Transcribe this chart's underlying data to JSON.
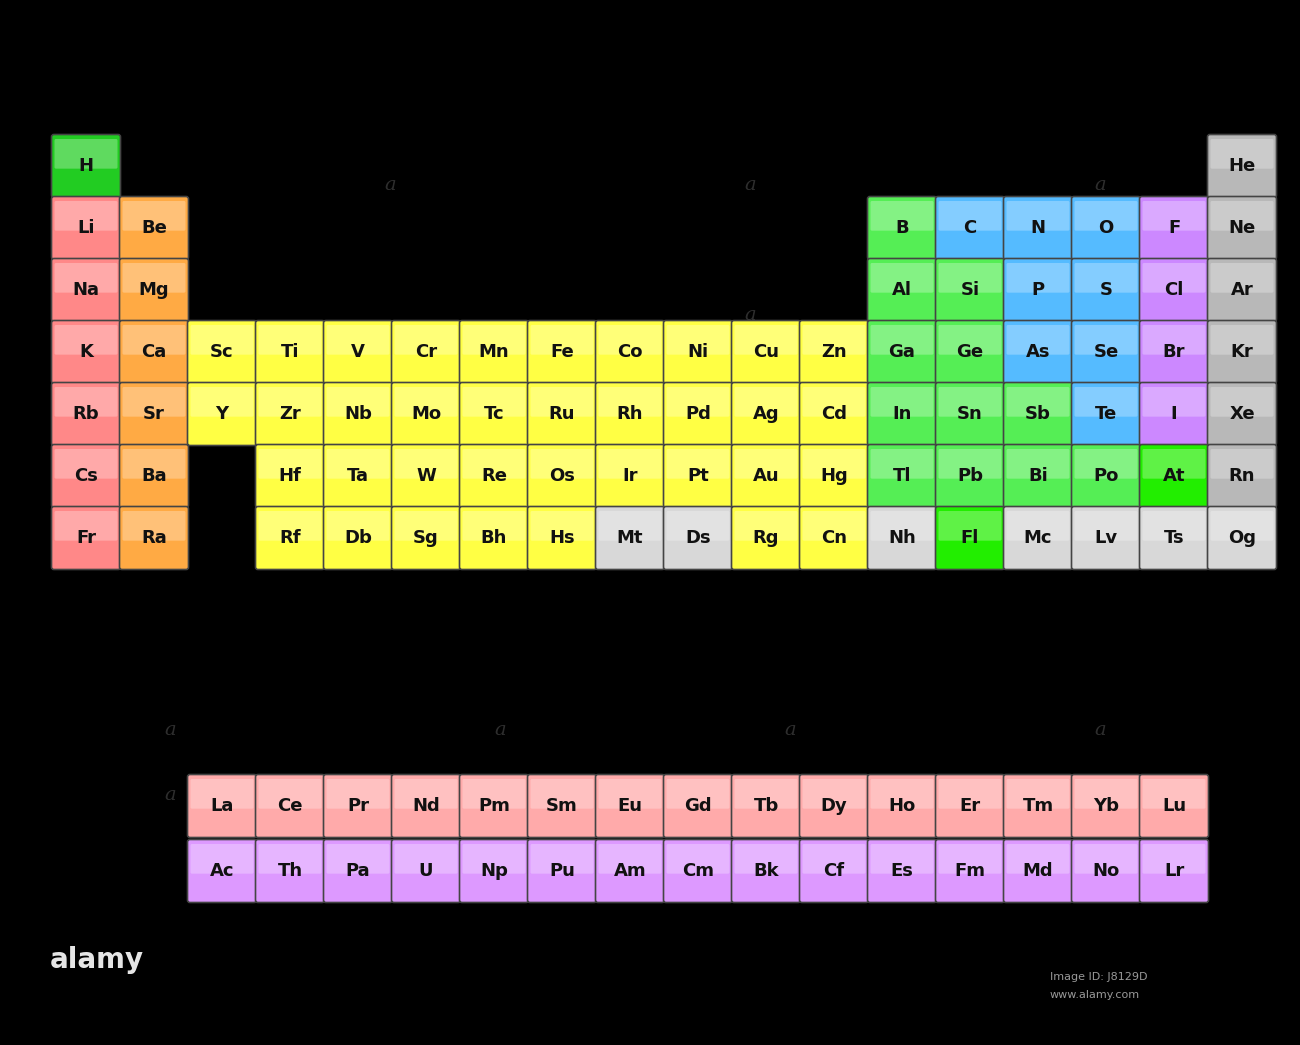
{
  "background_color": "#000000",
  "elements": [
    {
      "symbol": "H",
      "group": 1,
      "period": 1,
      "color": "#22cc22"
    },
    {
      "symbol": "He",
      "group": 18,
      "period": 1,
      "color": "#b8b8b8"
    },
    {
      "symbol": "Li",
      "group": 1,
      "period": 2,
      "color": "#ff8888"
    },
    {
      "symbol": "Be",
      "group": 2,
      "period": 2,
      "color": "#ffaa44"
    },
    {
      "symbol": "B",
      "group": 13,
      "period": 2,
      "color": "#55ee55"
    },
    {
      "symbol": "C",
      "group": 14,
      "period": 2,
      "color": "#55bbff"
    },
    {
      "symbol": "N",
      "group": 15,
      "period": 2,
      "color": "#55bbff"
    },
    {
      "symbol": "O",
      "group": 16,
      "period": 2,
      "color": "#55bbff"
    },
    {
      "symbol": "F",
      "group": 17,
      "period": 2,
      "color": "#cc88ff"
    },
    {
      "symbol": "Ne",
      "group": 18,
      "period": 2,
      "color": "#b8b8b8"
    },
    {
      "symbol": "Na",
      "group": 1,
      "period": 3,
      "color": "#ff8888"
    },
    {
      "symbol": "Mg",
      "group": 2,
      "period": 3,
      "color": "#ffaa44"
    },
    {
      "symbol": "Al",
      "group": 13,
      "period": 3,
      "color": "#55ee55"
    },
    {
      "symbol": "Si",
      "group": 14,
      "period": 3,
      "color": "#55ee55"
    },
    {
      "symbol": "P",
      "group": 15,
      "period": 3,
      "color": "#55bbff"
    },
    {
      "symbol": "S",
      "group": 16,
      "period": 3,
      "color": "#55bbff"
    },
    {
      "symbol": "Cl",
      "group": 17,
      "period": 3,
      "color": "#cc88ff"
    },
    {
      "symbol": "Ar",
      "group": 18,
      "period": 3,
      "color": "#b8b8b8"
    },
    {
      "symbol": "K",
      "group": 1,
      "period": 4,
      "color": "#ff8888"
    },
    {
      "symbol": "Ca",
      "group": 2,
      "period": 4,
      "color": "#ffaa44"
    },
    {
      "symbol": "Sc",
      "group": 3,
      "period": 4,
      "color": "#ffff44"
    },
    {
      "symbol": "Ti",
      "group": 4,
      "period": 4,
      "color": "#ffff44"
    },
    {
      "symbol": "V",
      "group": 5,
      "period": 4,
      "color": "#ffff44"
    },
    {
      "symbol": "Cr",
      "group": 6,
      "period": 4,
      "color": "#ffff44"
    },
    {
      "symbol": "Mn",
      "group": 7,
      "period": 4,
      "color": "#ffff44"
    },
    {
      "symbol": "Fe",
      "group": 8,
      "period": 4,
      "color": "#ffff44"
    },
    {
      "symbol": "Co",
      "group": 9,
      "period": 4,
      "color": "#ffff44"
    },
    {
      "symbol": "Ni",
      "group": 10,
      "period": 4,
      "color": "#ffff44"
    },
    {
      "symbol": "Cu",
      "group": 11,
      "period": 4,
      "color": "#ffff44"
    },
    {
      "symbol": "Zn",
      "group": 12,
      "period": 4,
      "color": "#ffff44"
    },
    {
      "symbol": "Ga",
      "group": 13,
      "period": 4,
      "color": "#55ee55"
    },
    {
      "symbol": "Ge",
      "group": 14,
      "period": 4,
      "color": "#55ee55"
    },
    {
      "symbol": "As",
      "group": 15,
      "period": 4,
      "color": "#55bbff"
    },
    {
      "symbol": "Se",
      "group": 16,
      "period": 4,
      "color": "#55bbff"
    },
    {
      "symbol": "Br",
      "group": 17,
      "period": 4,
      "color": "#cc88ff"
    },
    {
      "symbol": "Kr",
      "group": 18,
      "period": 4,
      "color": "#b8b8b8"
    },
    {
      "symbol": "Rb",
      "group": 1,
      "period": 5,
      "color": "#ff8888"
    },
    {
      "symbol": "Sr",
      "group": 2,
      "period": 5,
      "color": "#ffaa44"
    },
    {
      "symbol": "Y",
      "group": 3,
      "period": 5,
      "color": "#ffff44"
    },
    {
      "symbol": "Zr",
      "group": 4,
      "period": 5,
      "color": "#ffff44"
    },
    {
      "symbol": "Nb",
      "group": 5,
      "period": 5,
      "color": "#ffff44"
    },
    {
      "symbol": "Mo",
      "group": 6,
      "period": 5,
      "color": "#ffff44"
    },
    {
      "symbol": "Tc",
      "group": 7,
      "period": 5,
      "color": "#ffff44"
    },
    {
      "symbol": "Ru",
      "group": 8,
      "period": 5,
      "color": "#ffff44"
    },
    {
      "symbol": "Rh",
      "group": 9,
      "period": 5,
      "color": "#ffff44"
    },
    {
      "symbol": "Pd",
      "group": 10,
      "period": 5,
      "color": "#ffff44"
    },
    {
      "symbol": "Ag",
      "group": 11,
      "period": 5,
      "color": "#ffff44"
    },
    {
      "symbol": "Cd",
      "group": 12,
      "period": 5,
      "color": "#ffff44"
    },
    {
      "symbol": "In",
      "group": 13,
      "period": 5,
      "color": "#55ee55"
    },
    {
      "symbol": "Sn",
      "group": 14,
      "period": 5,
      "color": "#55ee55"
    },
    {
      "symbol": "Sb",
      "group": 15,
      "period": 5,
      "color": "#55ee55"
    },
    {
      "symbol": "Te",
      "group": 16,
      "period": 5,
      "color": "#55bbff"
    },
    {
      "symbol": "I",
      "group": 17,
      "period": 5,
      "color": "#cc88ff"
    },
    {
      "symbol": "Xe",
      "group": 18,
      "period": 5,
      "color": "#b8b8b8"
    },
    {
      "symbol": "Cs",
      "group": 1,
      "period": 6,
      "color": "#ff8888"
    },
    {
      "symbol": "Ba",
      "group": 2,
      "period": 6,
      "color": "#ffaa44"
    },
    {
      "symbol": "Hf",
      "group": 4,
      "period": 6,
      "color": "#ffff44"
    },
    {
      "symbol": "Ta",
      "group": 5,
      "period": 6,
      "color": "#ffff44"
    },
    {
      "symbol": "W",
      "group": 6,
      "period": 6,
      "color": "#ffff44"
    },
    {
      "symbol": "Re",
      "group": 7,
      "period": 6,
      "color": "#ffff44"
    },
    {
      "symbol": "Os",
      "group": 8,
      "period": 6,
      "color": "#ffff44"
    },
    {
      "symbol": "Ir",
      "group": 9,
      "period": 6,
      "color": "#ffff44"
    },
    {
      "symbol": "Pt",
      "group": 10,
      "period": 6,
      "color": "#ffff44"
    },
    {
      "symbol": "Au",
      "group": 11,
      "period": 6,
      "color": "#ffff44"
    },
    {
      "symbol": "Hg",
      "group": 12,
      "period": 6,
      "color": "#ffff44"
    },
    {
      "symbol": "Tl",
      "group": 13,
      "period": 6,
      "color": "#55ee55"
    },
    {
      "symbol": "Pb",
      "group": 14,
      "period": 6,
      "color": "#55ee55"
    },
    {
      "symbol": "Bi",
      "group": 15,
      "period": 6,
      "color": "#55ee55"
    },
    {
      "symbol": "Po",
      "group": 16,
      "period": 6,
      "color": "#55ee55"
    },
    {
      "symbol": "At",
      "group": 17,
      "period": 6,
      "color": "#22ee00"
    },
    {
      "symbol": "Rn",
      "group": 18,
      "period": 6,
      "color": "#b8b8b8"
    },
    {
      "symbol": "Fr",
      "group": 1,
      "period": 7,
      "color": "#ff8888"
    },
    {
      "symbol": "Ra",
      "group": 2,
      "period": 7,
      "color": "#ffaa44"
    },
    {
      "symbol": "Rf",
      "group": 4,
      "period": 7,
      "color": "#ffff44"
    },
    {
      "symbol": "Db",
      "group": 5,
      "period": 7,
      "color": "#ffff44"
    },
    {
      "symbol": "Sg",
      "group": 6,
      "period": 7,
      "color": "#ffff44"
    },
    {
      "symbol": "Bh",
      "group": 7,
      "period": 7,
      "color": "#ffff44"
    },
    {
      "symbol": "Hs",
      "group": 8,
      "period": 7,
      "color": "#ffff44"
    },
    {
      "symbol": "Mt",
      "group": 9,
      "period": 7,
      "color": "#d8d8d8"
    },
    {
      "symbol": "Ds",
      "group": 10,
      "period": 7,
      "color": "#d8d8d8"
    },
    {
      "symbol": "Rg",
      "group": 11,
      "period": 7,
      "color": "#ffff44"
    },
    {
      "symbol": "Cn",
      "group": 12,
      "period": 7,
      "color": "#ffff44"
    },
    {
      "symbol": "Nh",
      "group": 13,
      "period": 7,
      "color": "#d8d8d8"
    },
    {
      "symbol": "Fl",
      "group": 14,
      "period": 7,
      "color": "#22ee00"
    },
    {
      "symbol": "Mc",
      "group": 15,
      "period": 7,
      "color": "#d8d8d8"
    },
    {
      "symbol": "Lv",
      "group": 16,
      "period": 7,
      "color": "#d8d8d8"
    },
    {
      "symbol": "Ts",
      "group": 17,
      "period": 7,
      "color": "#d8d8d8"
    },
    {
      "symbol": "Og",
      "group": 18,
      "period": 7,
      "color": "#d8d8d8"
    },
    {
      "symbol": "La",
      "group": 3,
      "period": 9,
      "color": "#ffaaaa"
    },
    {
      "symbol": "Ce",
      "group": 4,
      "period": 9,
      "color": "#ffaaaa"
    },
    {
      "symbol": "Pr",
      "group": 5,
      "period": 9,
      "color": "#ffaaaa"
    },
    {
      "symbol": "Nd",
      "group": 6,
      "period": 9,
      "color": "#ffaaaa"
    },
    {
      "symbol": "Pm",
      "group": 7,
      "period": 9,
      "color": "#ffaaaa"
    },
    {
      "symbol": "Sm",
      "group": 8,
      "period": 9,
      "color": "#ffaaaa"
    },
    {
      "symbol": "Eu",
      "group": 9,
      "period": 9,
      "color": "#ffaaaa"
    },
    {
      "symbol": "Gd",
      "group": 10,
      "period": 9,
      "color": "#ffaaaa"
    },
    {
      "symbol": "Tb",
      "group": 11,
      "period": 9,
      "color": "#ffaaaa"
    },
    {
      "symbol": "Dy",
      "group": 12,
      "period": 9,
      "color": "#ffaaaa"
    },
    {
      "symbol": "Ho",
      "group": 13,
      "period": 9,
      "color": "#ffaaaa"
    },
    {
      "symbol": "Er",
      "group": 14,
      "period": 9,
      "color": "#ffaaaa"
    },
    {
      "symbol": "Tm",
      "group": 15,
      "period": 9,
      "color": "#ffaaaa"
    },
    {
      "symbol": "Yb",
      "group": 16,
      "period": 9,
      "color": "#ffaaaa"
    },
    {
      "symbol": "Lu",
      "group": 17,
      "period": 9,
      "color": "#ffaaaa"
    },
    {
      "symbol": "Ac",
      "group": 3,
      "period": 10,
      "color": "#dd99ff"
    },
    {
      "symbol": "Th",
      "group": 4,
      "period": 10,
      "color": "#dd99ff"
    },
    {
      "symbol": "Pa",
      "group": 5,
      "period": 10,
      "color": "#dd99ff"
    },
    {
      "symbol": "U",
      "group": 6,
      "period": 10,
      "color": "#dd99ff"
    },
    {
      "symbol": "Np",
      "group": 7,
      "period": 10,
      "color": "#dd99ff"
    },
    {
      "symbol": "Pu",
      "group": 8,
      "period": 10,
      "color": "#dd99ff"
    },
    {
      "symbol": "Am",
      "group": 9,
      "period": 10,
      "color": "#dd99ff"
    },
    {
      "symbol": "Cm",
      "group": 10,
      "period": 10,
      "color": "#dd99ff"
    },
    {
      "symbol": "Bk",
      "group": 11,
      "period": 10,
      "color": "#dd99ff"
    },
    {
      "symbol": "Cf",
      "group": 12,
      "period": 10,
      "color": "#dd99ff"
    },
    {
      "symbol": "Es",
      "group": 13,
      "period": 10,
      "color": "#dd99ff"
    },
    {
      "symbol": "Fm",
      "group": 14,
      "period": 10,
      "color": "#dd99ff"
    },
    {
      "symbol": "Md",
      "group": 15,
      "period": 10,
      "color": "#dd99ff"
    },
    {
      "symbol": "No",
      "group": 16,
      "period": 10,
      "color": "#dd99ff"
    },
    {
      "symbol": "Lr",
      "group": 17,
      "period": 10,
      "color": "#dd99ff"
    }
  ]
}
